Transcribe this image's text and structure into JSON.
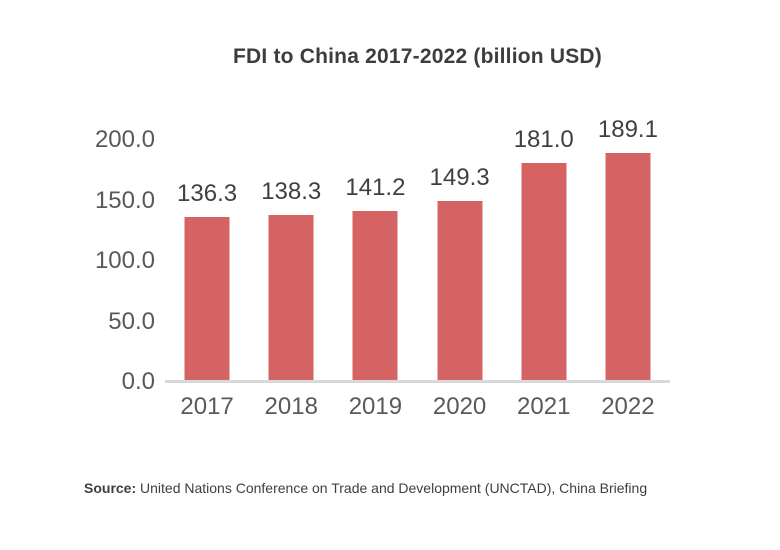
{
  "chart_data": {
    "type": "bar",
    "title": "FDI to China 2017-2022 (billion USD)",
    "categories": [
      "2017",
      "2018",
      "2019",
      "2020",
      "2021",
      "2022"
    ],
    "values": [
      136.3,
      138.3,
      141.2,
      149.3,
      181.0,
      189.1
    ],
    "value_labels": [
      "136.3",
      "138.3",
      "141.2",
      "149.3",
      "181.0",
      "189.1"
    ],
    "xlabel": "",
    "ylabel": "",
    "ylim": [
      0,
      200
    ],
    "yticks": [
      0,
      50,
      100,
      150,
      200
    ],
    "ytick_labels": [
      "0.0",
      "50.0",
      "100.0",
      "150.0",
      "200.0"
    ],
    "grid": false,
    "legend_position": "none",
    "bar_color": "#d56363"
  },
  "footer": {
    "source_label": "Source:",
    "source_text": " United Nations Conference on Trade and Development (UNCTAD), China Briefing"
  },
  "colors": {
    "bar": "#d56363",
    "title_text": "#3d3d3d",
    "axis_text": "#595959",
    "data_label_text": "#404040",
    "baseline": "#d9d9d9",
    "background": "#ffffff"
  }
}
